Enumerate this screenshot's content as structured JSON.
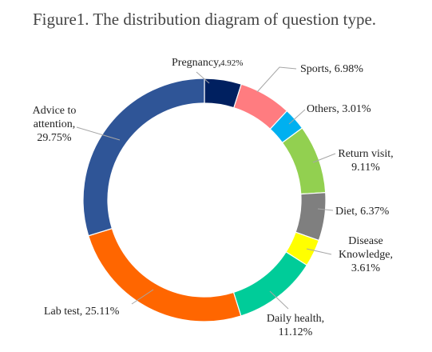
{
  "chart_data": {
    "type": "pie",
    "title": "Figure1. The distribution diagram of question type.",
    "slices": [
      {
        "label_lines": [
          "Pregnancy,"
        ],
        "value_text": "4.92%",
        "value": 4.92,
        "color": "#002060"
      },
      {
        "label_lines": [
          "Sports, 6.98%"
        ],
        "value": 6.98,
        "color": "#ff7c80"
      },
      {
        "label_lines": [
          "Others, 3.01%"
        ],
        "value": 3.01,
        "color": "#00b0f0"
      },
      {
        "label_lines": [
          "Return visit,",
          "9.11%"
        ],
        "value": 9.11,
        "color": "#92d050"
      },
      {
        "label_lines": [
          "Diet, 6.37%"
        ],
        "value": 6.37,
        "color": "#7f7f7f"
      },
      {
        "label_lines": [
          "Disease",
          "Knowledge,",
          "3.61%"
        ],
        "value": 3.61,
        "color": "#ffff00"
      },
      {
        "label_lines": [
          "Daily health,",
          "11.12%"
        ],
        "value": 11.12,
        "color": "#00cc99"
      },
      {
        "label_lines": [
          "Lab test, 25.11%"
        ],
        "value": 25.11,
        "color": "#ff6600"
      },
      {
        "label_lines": [
          "Advice to",
          "attention,",
          "29.75%"
        ],
        "value": 29.75,
        "color": "#2f5597"
      }
    ]
  }
}
